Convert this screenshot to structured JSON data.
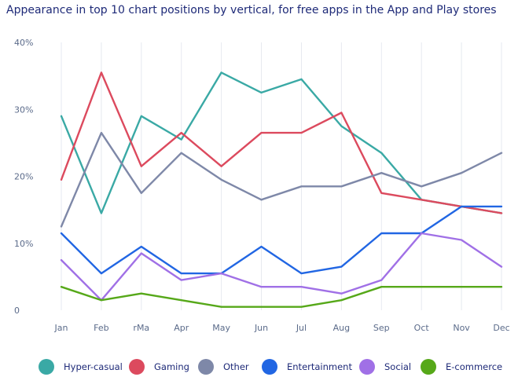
{
  "chart_data": {
    "type": "line",
    "title": "Appearance in top 10 chart positions by vertical, for free apps in the App and Play stores",
    "categories": [
      "Jan",
      "Feb",
      "rMa",
      "Apr",
      "May",
      "Jun",
      "Jul",
      "Aug",
      "Sep",
      "Oct",
      "Nov",
      "Dec"
    ],
    "y_ticks": [
      "0",
      "10%",
      "20%",
      "30%",
      "40%"
    ],
    "ylim": [
      0,
      40
    ],
    "grid": "vertical",
    "legend_position": "bottom",
    "series": [
      {
        "name": "Hyper-casual",
        "color": "#3aa9a5",
        "values": [
          29,
          14.5,
          29,
          25.5,
          35.5,
          32.5,
          34.5,
          27.5,
          23.5,
          16.5,
          15.5,
          14.5
        ]
      },
      {
        "name": "Gaming",
        "color": "#dc4a5e",
        "values": [
          19.5,
          35.5,
          21.5,
          26.5,
          21.5,
          26.5,
          26.5,
          29.5,
          17.5,
          16.5,
          15.5,
          14.5
        ]
      },
      {
        "name": "Other",
        "color": "#7e88a8",
        "values": [
          12.5,
          26.5,
          17.5,
          23.5,
          19.5,
          16.5,
          18.5,
          18.5,
          20.5,
          18.5,
          20.5,
          23.5
        ]
      },
      {
        "name": "Entertainment",
        "color": "#2166e3",
        "values": [
          11.5,
          5.5,
          9.5,
          5.5,
          5.5,
          9.5,
          5.5,
          6.5,
          11.5,
          11.5,
          15.5,
          15.5
        ]
      },
      {
        "name": "Social",
        "color": "#a070e6",
        "values": [
          7.5,
          1.5,
          8.5,
          4.5,
          5.5,
          3.5,
          3.5,
          2.5,
          4.5,
          11.5,
          10.5,
          6.5
        ]
      },
      {
        "name": "E-commerce",
        "color": "#56a819",
        "values": [
          3.5,
          1.5,
          2.5,
          1.5,
          0.5,
          0.5,
          0.5,
          1.5,
          3.5,
          3.5,
          3.5,
          3.5
        ]
      }
    ]
  }
}
